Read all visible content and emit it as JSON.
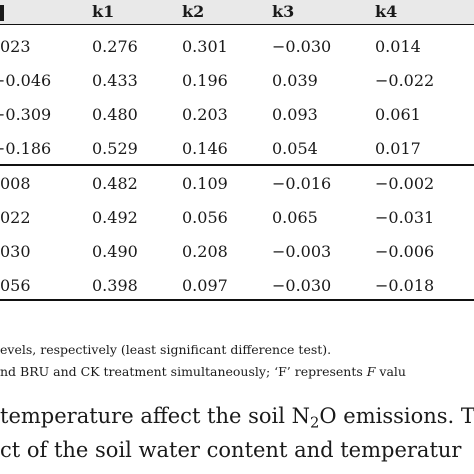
{
  "table": {
    "columns": [
      "k1",
      "k2",
      "k3",
      "k4"
    ],
    "rows_top": [
      {
        "first": "023",
        "k1": "0.276",
        "k2": "0.301",
        "k3": "−0.030",
        "k4": "0.014"
      },
      {
        "first": "−0.046",
        "k1": "0.433",
        "k2": "0.196",
        "k3": "0.039",
        "k4": "−0.022"
      },
      {
        "first": "−0.309",
        "k1": "0.480",
        "k2": "0.203",
        "k3": "0.093",
        "k4": "0.061"
      },
      {
        "first": "−0.186",
        "k1": "0.529",
        "k2": "0.146",
        "k3": "0.054",
        "k4": "0.017"
      }
    ],
    "rows_bottom": [
      {
        "first": "008",
        "k1": "0.482",
        "k2": "0.109",
        "k3": "−0.016",
        "k4": "−0.002"
      },
      {
        "first": "022",
        "k1": "0.492",
        "k2": "0.056",
        "k3": "0.065",
        "k4": "−0.031"
      },
      {
        "first": "030",
        "k1": "0.490",
        "k2": "0.208",
        "k3": "−0.003",
        "k4": "−0.006"
      },
      {
        "first": "056",
        "k1": "0.398",
        "k2": "0.097",
        "k3": "−0.030",
        "k4": "−0.018"
      }
    ]
  },
  "footnotes": {
    "line1": "evels, respectively (least significant difference test).",
    "line2_a": "nd BRU and CK treatment simultaneously; ‘F’ represents ",
    "line2_italic": "F",
    "line2_b": " valu"
  },
  "body_text": {
    "line1_a": "temperature affect the soil N",
    "line1_sub": "2",
    "line1_b": "O emissions. T",
    "line2": "ct of the soil water content and temperatur"
  }
}
